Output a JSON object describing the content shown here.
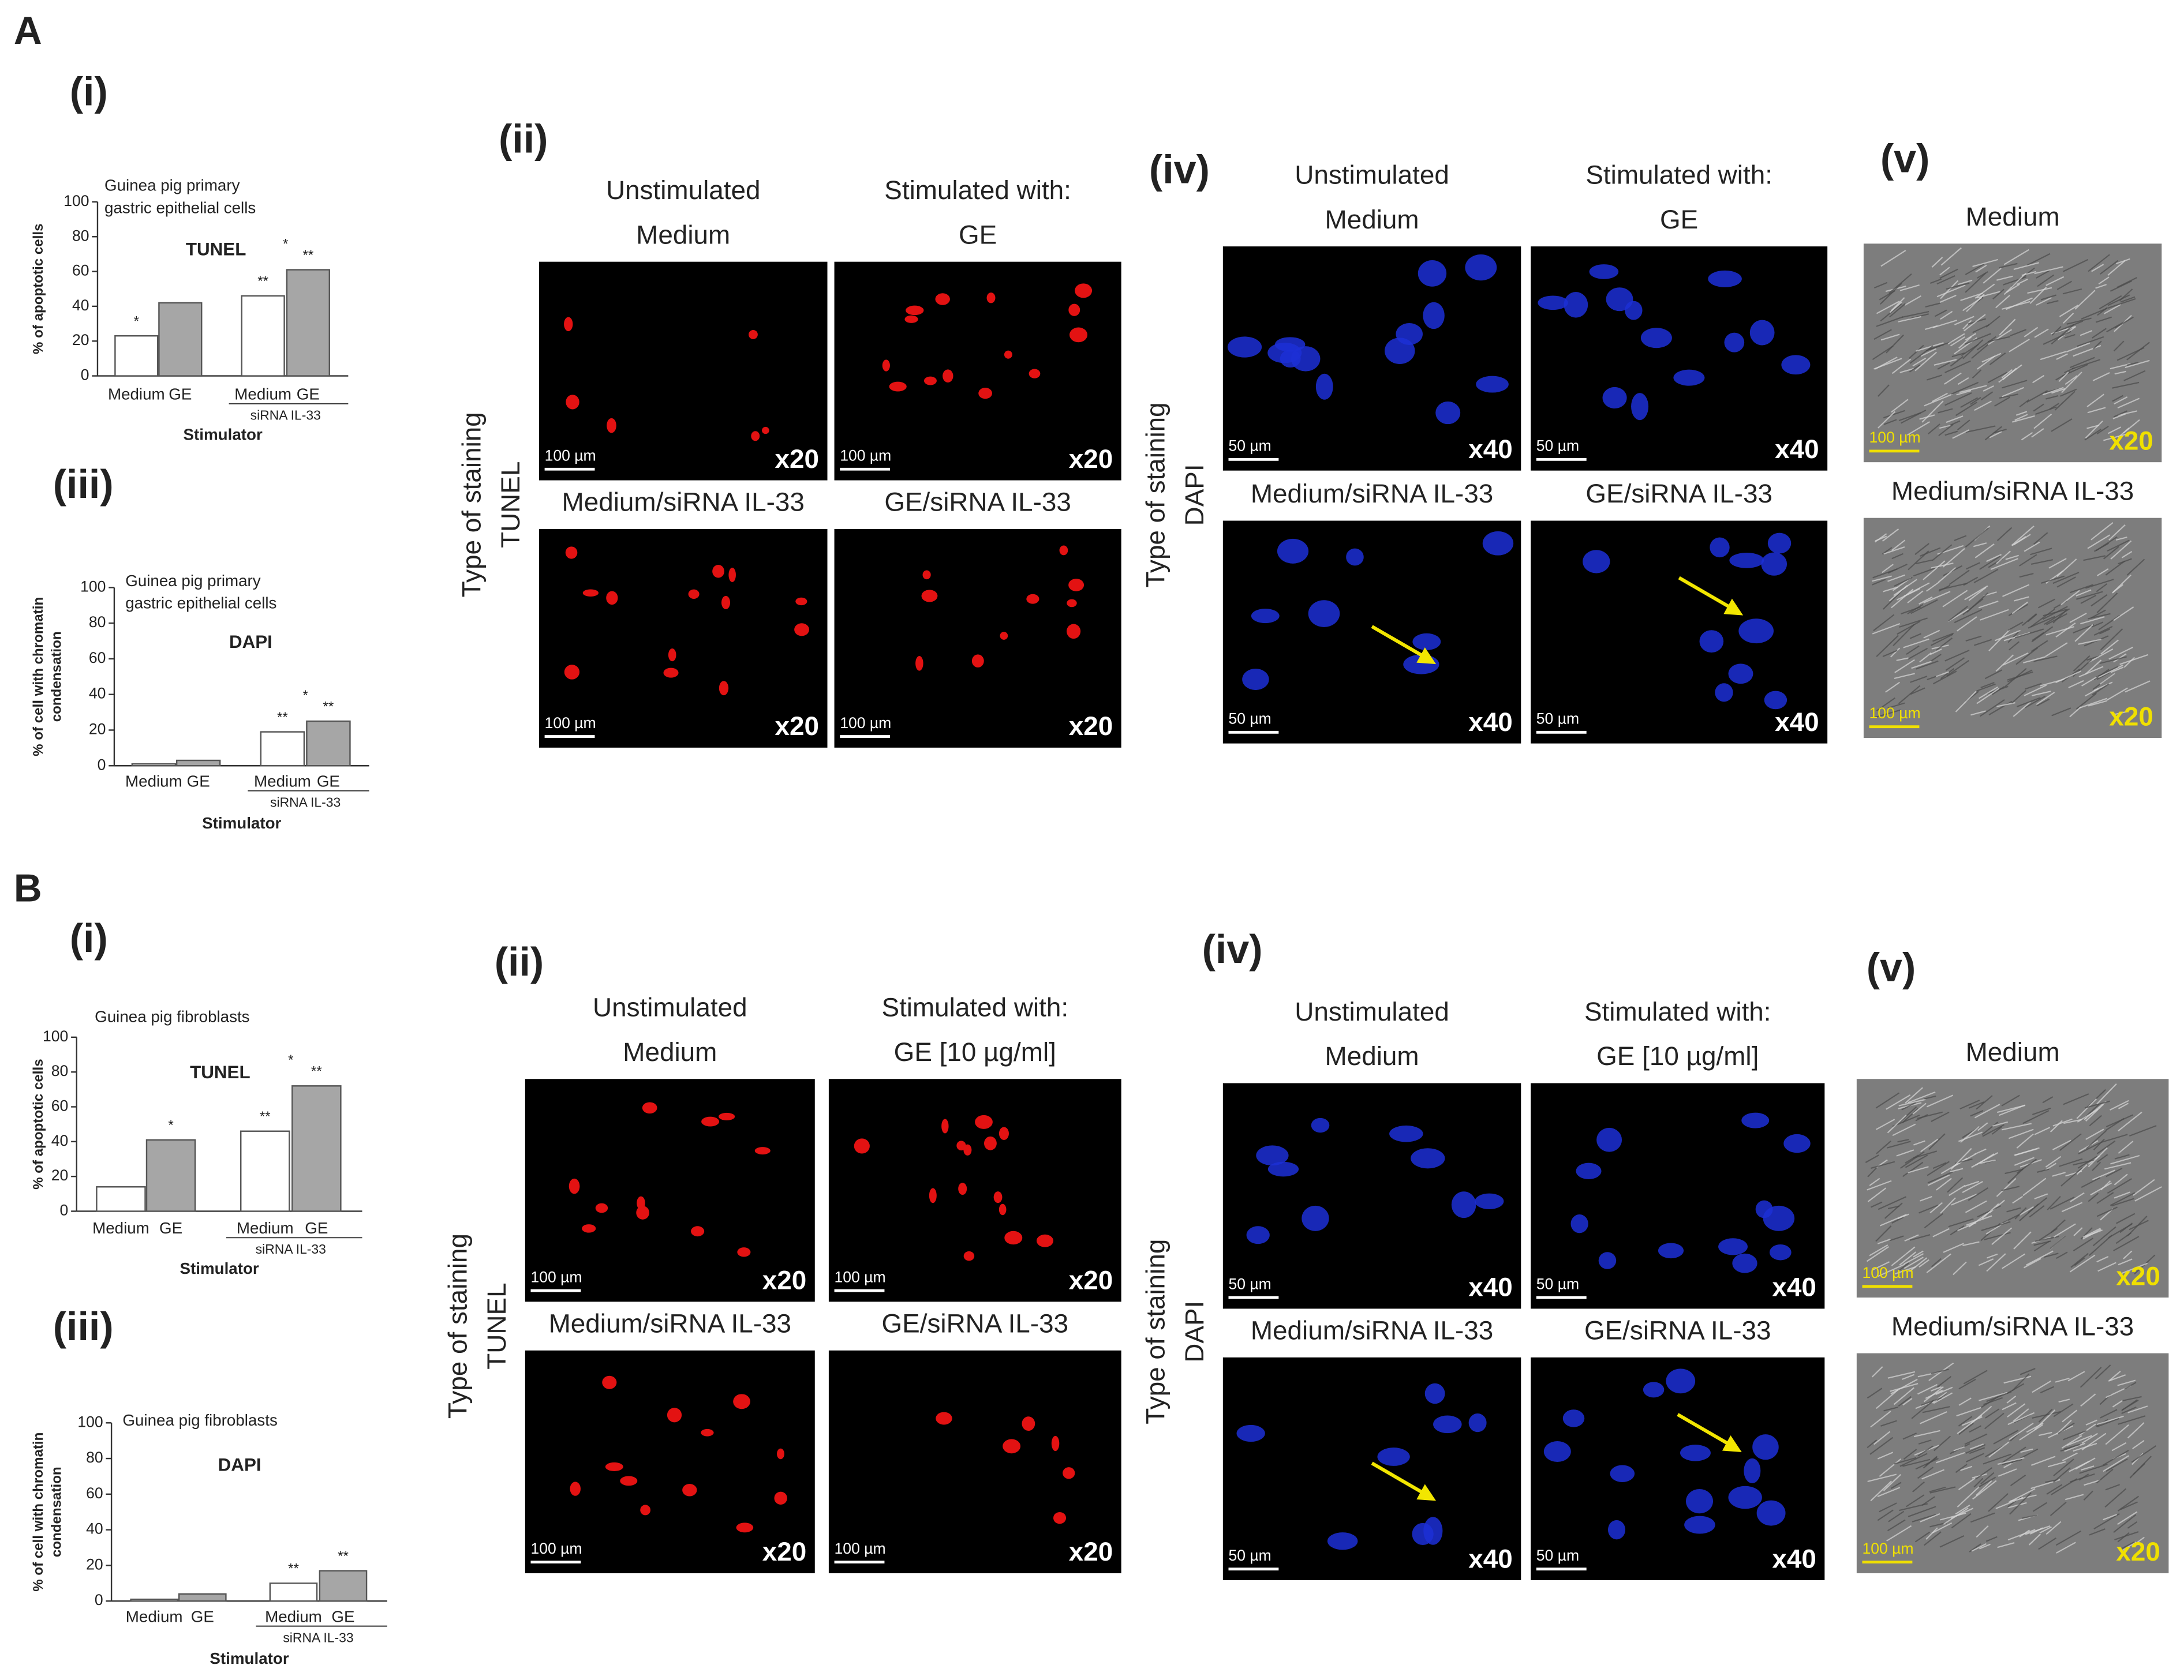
{
  "chart_data": [
    {
      "type": "bar",
      "title": [
        "Guinea pig primary",
        "gastric epithelial cells"
      ],
      "ylabel": [
        "% of apoptotic cells"
      ],
      "stain_label": "TUNEL",
      "categories": [
        "Medium",
        "GE",
        "Medium",
        "GE"
      ],
      "values": [
        23,
        42,
        46,
        61
      ],
      "colors": [
        "#ffffff",
        "#a6a6a6",
        "#ffffff",
        "#a6a6a6"
      ],
      "ylim": [
        0,
        100
      ],
      "yticks": [
        0,
        20,
        40,
        60,
        80,
        100
      ],
      "group_label": "siRNA IL-33",
      "xlabel": "Stimulator",
      "bar_annotations": [
        "*",
        null,
        "**",
        "**"
      ],
      "between_annotation": "*"
    },
    {
      "type": "bar",
      "title": [
        "Guinea pig primary",
        "gastric epithelial cells"
      ],
      "ylabel": [
        "% of cell with chromatin",
        "condensation"
      ],
      "stain_label": "DAPI",
      "categories": [
        "Medium",
        "GE",
        "Medium",
        "GE"
      ],
      "values": [
        1,
        3,
        19,
        25
      ],
      "colors": [
        "#ffffff",
        "#a6a6a6",
        "#ffffff",
        "#a6a6a6"
      ],
      "ylim": [
        0,
        100
      ],
      "yticks": [
        0,
        20,
        40,
        60,
        80,
        100
      ],
      "group_label": "siRNA IL-33",
      "xlabel": "Stimulator",
      "bar_annotations": [
        null,
        null,
        "**",
        "**"
      ],
      "between_annotation": "*"
    },
    {
      "type": "bar",
      "title": [
        "Guinea pig fibroblasts"
      ],
      "ylabel": [
        "% of apoptotic cells"
      ],
      "stain_label": "TUNEL",
      "categories": [
        "Medium",
        "GE",
        "Medium",
        "GE"
      ],
      "values": [
        14,
        41,
        46,
        72
      ],
      "colors": [
        "#ffffff",
        "#a6a6a6",
        "#ffffff",
        "#a6a6a6"
      ],
      "ylim": [
        0,
        100
      ],
      "yticks": [
        0,
        20,
        40,
        60,
        80,
        100
      ],
      "group_label": "siRNA IL-33",
      "xlabel": "Stimulator",
      "bar_annotations": [
        null,
        "*",
        "**",
        "**"
      ],
      "between_annotation": "*"
    },
    {
      "type": "bar",
      "title": [
        "Guinea pig fibroblasts"
      ],
      "ylabel": [
        "% of cell with chromatin",
        "condensation"
      ],
      "stain_label": "DAPI",
      "categories": [
        "Medium",
        "GE",
        "Medium",
        "GE"
      ],
      "values": [
        1,
        4,
        10,
        17
      ],
      "colors": [
        "#ffffff",
        "#a6a6a6",
        "#ffffff",
        "#a6a6a6"
      ],
      "ylim": [
        0,
        100
      ],
      "yticks": [
        0,
        20,
        40,
        60,
        80,
        100
      ],
      "group_label": "siRNA IL-33",
      "xlabel": "Stimulator",
      "bar_annotations": [
        null,
        null,
        "**",
        "**"
      ]
    }
  ],
  "figure": {
    "panels": [
      {
        "letter": "A",
        "chart_labels": [
          "(i)",
          "(iii)"
        ],
        "micro": [
          {
            "label": "(ii)",
            "header": [
              "Unstimulated",
              "Stimulated with:"
            ],
            "staining_axis": "Type of staining",
            "stain": "TUNEL",
            "images": [
              {
                "caption": "Medium",
                "scale": "100 µm",
                "magnification": "x20"
              },
              {
                "caption": "GE",
                "scale": "100 µm",
                "magnification": "x20"
              },
              {
                "caption": "Medium/siRNA IL-33",
                "scale": "100 µm",
                "magnification": "x20"
              },
              {
                "caption": "GE/siRNA IL-33",
                "scale": "100 µm",
                "magnification": "x20"
              }
            ]
          },
          {
            "label": "(iv)",
            "header": [
              "Unstimulated",
              "Stimulated with:"
            ],
            "staining_axis": "Type of staining",
            "stain": "DAPI",
            "images": [
              {
                "caption": "Medium",
                "scale": "50 µm",
                "magnification": "x40"
              },
              {
                "caption": "GE",
                "scale": "50 µm",
                "magnification": "x40"
              },
              {
                "caption": "Medium/siRNA IL-33",
                "scale": "50 µm",
                "magnification": "x40"
              },
              {
                "caption": "GE/siRNA IL-33",
                "scale": "50 µm",
                "magnification": "x40"
              }
            ]
          },
          {
            "label": "(v)",
            "images": [
              {
                "caption": "Medium",
                "scale": "100 µm",
                "magnification": "x20"
              },
              {
                "caption": "Medium/siRNA IL-33",
                "scale": "100 µm",
                "magnification": "x20"
              }
            ]
          }
        ]
      },
      {
        "letter": "B",
        "chart_labels": [
          "(i)",
          "(iii)"
        ],
        "micro": [
          {
            "label": "(ii)",
            "header": [
              "Unstimulated",
              "Stimulated with:"
            ],
            "staining_axis": "Type of staining",
            "stain": "TUNEL",
            "images": [
              {
                "caption": "Medium",
                "scale": "100 µm",
                "magnification": "x20"
              },
              {
                "caption": "GE [10 µg/ml]",
                "scale": "100 µm",
                "magnification": "x20"
              },
              {
                "caption": "Medium/siRNA IL-33",
                "scale": "100 µm",
                "magnification": "x20"
              },
              {
                "caption": "GE/siRNA IL-33",
                "scale": "100 µm",
                "magnification": "x20"
              }
            ]
          },
          {
            "label": "(iv)",
            "header": [
              "Unstimulated",
              "Stimulated with:"
            ],
            "staining_axis": "Type of staining",
            "stain": "DAPI",
            "images": [
              {
                "caption": "Medium",
                "scale": "50 µm",
                "magnification": "x40"
              },
              {
                "caption": "GE [10 µg/ml]",
                "scale": "50 µm",
                "magnification": "x40"
              },
              {
                "caption": "Medium/siRNA IL-33",
                "scale": "50 µm",
                "magnification": "x40"
              },
              {
                "caption": "GE/siRNA IL-33",
                "scale": "50 µm",
                "magnification": "x40"
              }
            ]
          },
          {
            "label": "(v)",
            "images": [
              {
                "caption": "Medium",
                "scale": "100 µm",
                "magnification": "x20"
              },
              {
                "caption": "Medium/siRNA IL-33",
                "scale": "100 µm",
                "magnification": "x20"
              }
            ]
          }
        ]
      }
    ]
  }
}
